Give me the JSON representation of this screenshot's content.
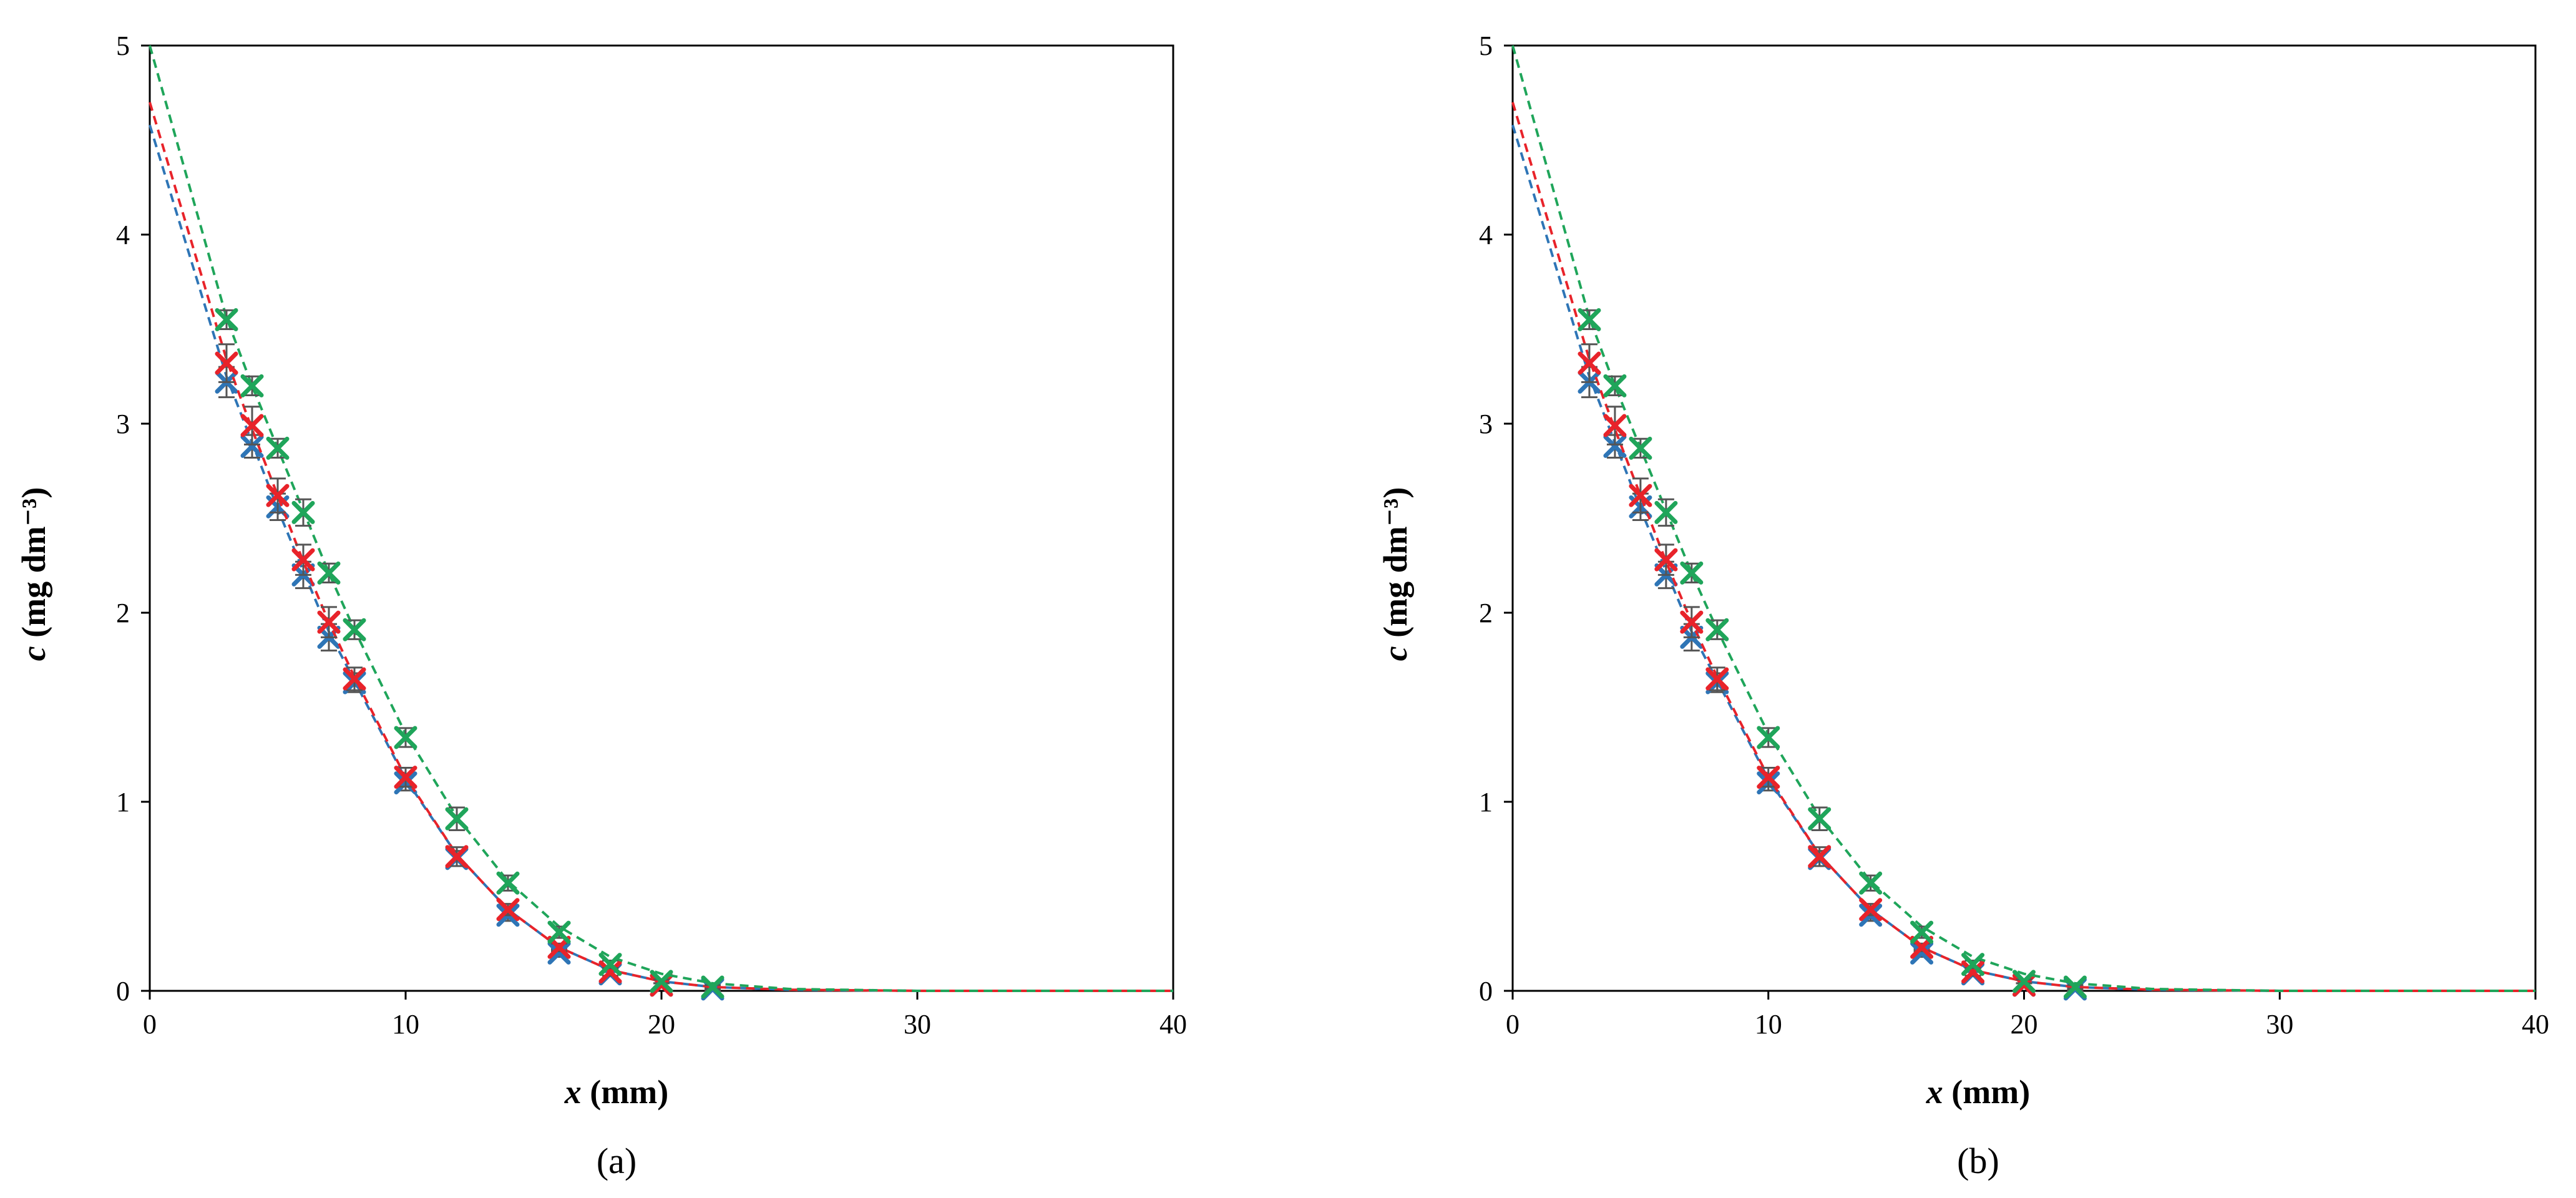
{
  "chart_data": [
    {
      "type": "scatter",
      "caption": "(a)",
      "xlabel_var": "x",
      "xlabel_unit": " (mm)",
      "ylabel_var": "c",
      "ylabel_unit": " (mg dm⁻³)",
      "xlim": [
        0,
        40
      ],
      "ylim": [
        0,
        5
      ],
      "xticks": [
        0,
        10,
        20,
        30,
        40
      ],
      "yticks": [
        0,
        1,
        2,
        3,
        4,
        5
      ],
      "grid": false,
      "series": [
        {
          "color": "#2e75b6",
          "marker": "x",
          "points": {
            "x": [
              3,
              4,
              5,
              6,
              7,
              8,
              10,
              12,
              14,
              16,
              18,
              20,
              22
            ],
            "y": [
              3.22,
              2.88,
              2.56,
              2.2,
              1.87,
              1.63,
              1.1,
              0.7,
              0.4,
              0.2,
              0.09,
              0.03,
              0.01
            ],
            "err": [
              0.08,
              0.06,
              0.07,
              0.07,
              0.07,
              0.05,
              0.04,
              0.04,
              0.03,
              0.02,
              0.01,
              0.01,
              0.01
            ]
          },
          "fit": {
            "x": [
              0,
              3,
              4,
              5,
              6,
              7,
              8,
              10,
              12,
              14,
              16,
              18,
              20,
              22,
              25,
              30,
              35,
              40
            ],
            "y": [
              4.58,
              3.25,
              2.9,
              2.55,
              2.22,
              1.9,
              1.64,
              1.12,
              0.72,
              0.43,
              0.23,
              0.11,
              0.05,
              0.02,
              0.006,
              0.0,
              0.0,
              0.0
            ]
          }
        },
        {
          "color": "#e8232a",
          "marker": "x",
          "points": {
            "x": [
              3,
              4,
              5,
              6,
              7,
              8,
              10,
              12,
              14,
              16,
              18,
              20
            ],
            "y": [
              3.32,
              2.99,
              2.62,
              2.28,
              1.95,
              1.65,
              1.13,
              0.71,
              0.43,
              0.23,
              0.1,
              0.03
            ],
            "err": [
              0.1,
              0.1,
              0.09,
              0.08,
              0.08,
              0.06,
              0.05,
              0.05,
              0.03,
              0.02,
              0.02,
              0.01
            ]
          },
          "fit": {
            "x": [
              0,
              3,
              4,
              5,
              6,
              7,
              8,
              10,
              12,
              14,
              16,
              18,
              20,
              22,
              25,
              30,
              35,
              40
            ],
            "y": [
              4.7,
              3.34,
              2.97,
              2.62,
              2.27,
              1.95,
              1.66,
              1.13,
              0.72,
              0.43,
              0.23,
              0.11,
              0.05,
              0.02,
              0.006,
              0.0,
              0.0,
              0.0
            ]
          }
        },
        {
          "color": "#1fa55a",
          "marker": "x",
          "points": {
            "x": [
              3,
              4,
              5,
              6,
              7,
              8,
              10,
              12,
              14,
              16,
              18,
              20,
              22
            ],
            "y": [
              3.55,
              3.2,
              2.87,
              2.53,
              2.21,
              1.91,
              1.34,
              0.91,
              0.57,
              0.31,
              0.14,
              0.05,
              0.02
            ],
            "err": [
              0.05,
              0.05,
              0.05,
              0.07,
              0.05,
              0.05,
              0.05,
              0.06,
              0.04,
              0.03,
              0.02,
              0.01,
              0.01
            ]
          },
          "fit": {
            "x": [
              0,
              3,
              4,
              5,
              6,
              7,
              8,
              10,
              12,
              14,
              16,
              18,
              20,
              22,
              25,
              30,
              35,
              40
            ],
            "y": [
              5.0,
              3.56,
              3.2,
              2.87,
              2.54,
              2.21,
              1.91,
              1.36,
              0.92,
              0.58,
              0.34,
              0.18,
              0.09,
              0.04,
              0.01,
              0.0,
              0.0,
              0.0
            ]
          }
        }
      ]
    },
    {
      "type": "scatter",
      "caption": "(b)",
      "xlabel_var": "x",
      "xlabel_unit": " (mm)",
      "ylabel_var": "c",
      "ylabel_unit": " (mg dm⁻³)",
      "xlim": [
        0,
        40
      ],
      "ylim": [
        0,
        5
      ],
      "xticks": [
        0,
        10,
        20,
        30,
        40
      ],
      "yticks": [
        0,
        1,
        2,
        3,
        4,
        5
      ],
      "grid": false,
      "series": [
        {
          "color": "#2e75b6",
          "marker": "x",
          "points": {
            "x": [
              3,
              4,
              5,
              6,
              7,
              8,
              10,
              12,
              14,
              16,
              18,
              20,
              22
            ],
            "y": [
              3.22,
              2.88,
              2.56,
              2.2,
              1.87,
              1.63,
              1.1,
              0.7,
              0.4,
              0.2,
              0.09,
              0.03,
              0.01
            ],
            "err": [
              0.08,
              0.06,
              0.07,
              0.07,
              0.07,
              0.05,
              0.04,
              0.04,
              0.03,
              0.02,
              0.01,
              0.01,
              0.01
            ]
          },
          "fit": {
            "x": [
              0,
              3,
              4,
              5,
              6,
              7,
              8,
              10,
              12,
              14,
              16,
              18,
              20,
              22,
              25,
              30,
              35,
              40
            ],
            "y": [
              4.58,
              3.25,
              2.9,
              2.55,
              2.22,
              1.9,
              1.64,
              1.12,
              0.72,
              0.43,
              0.23,
              0.11,
              0.05,
              0.02,
              0.006,
              0.0,
              0.0,
              0.0
            ]
          }
        },
        {
          "color": "#e8232a",
          "marker": "x",
          "points": {
            "x": [
              3,
              4,
              5,
              6,
              7,
              8,
              10,
              12,
              14,
              16,
              18,
              20
            ],
            "y": [
              3.32,
              2.99,
              2.62,
              2.28,
              1.95,
              1.65,
              1.13,
              0.71,
              0.43,
              0.23,
              0.1,
              0.03
            ],
            "err": [
              0.1,
              0.1,
              0.09,
              0.08,
              0.08,
              0.06,
              0.05,
              0.05,
              0.03,
              0.02,
              0.02,
              0.01
            ]
          },
          "fit": {
            "x": [
              0,
              3,
              4,
              5,
              6,
              7,
              8,
              10,
              12,
              14,
              16,
              18,
              20,
              22,
              25,
              30,
              35,
              40
            ],
            "y": [
              4.7,
              3.34,
              2.97,
              2.62,
              2.27,
              1.95,
              1.66,
              1.13,
              0.72,
              0.43,
              0.23,
              0.11,
              0.05,
              0.02,
              0.006,
              0.0,
              0.0,
              0.0
            ]
          }
        },
        {
          "color": "#1fa55a",
          "marker": "x",
          "points": {
            "x": [
              3,
              4,
              5,
              6,
              7,
              8,
              10,
              12,
              14,
              16,
              18,
              20,
              22
            ],
            "y": [
              3.55,
              3.2,
              2.87,
              2.53,
              2.21,
              1.91,
              1.34,
              0.91,
              0.57,
              0.31,
              0.14,
              0.05,
              0.02
            ],
            "err": [
              0.05,
              0.05,
              0.05,
              0.07,
              0.05,
              0.05,
              0.05,
              0.06,
              0.04,
              0.03,
              0.02,
              0.01,
              0.01
            ]
          },
          "fit": {
            "x": [
              0,
              3,
              4,
              5,
              6,
              7,
              8,
              10,
              12,
              14,
              16,
              18,
              20,
              22,
              25,
              30,
              35,
              40
            ],
            "y": [
              5.0,
              3.56,
              3.2,
              2.87,
              2.54,
              2.21,
              1.91,
              1.36,
              0.92,
              0.58,
              0.34,
              0.18,
              0.09,
              0.04,
              0.01,
              0.0,
              0.0,
              0.0
            ]
          }
        }
      ]
    }
  ]
}
